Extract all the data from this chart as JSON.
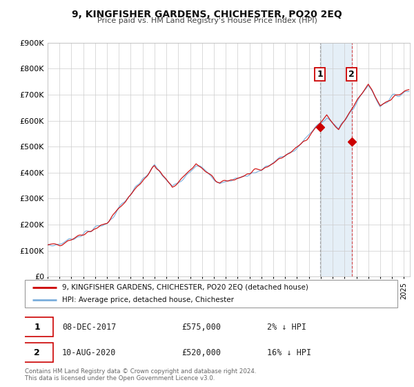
{
  "title": "9, KINGFISHER GARDENS, CHICHESTER, PO20 2EQ",
  "subtitle": "Price paid vs. HM Land Registry's House Price Index (HPI)",
  "ylim": [
    0,
    900000
  ],
  "yticks": [
    0,
    100000,
    200000,
    300000,
    400000,
    500000,
    600000,
    700000,
    800000,
    900000
  ],
  "ytick_labels": [
    "£0",
    "£100K",
    "£200K",
    "£300K",
    "£400K",
    "£500K",
    "£600K",
    "£700K",
    "£800K",
    "£900K"
  ],
  "xmin": 1995.0,
  "xmax": 2025.5,
  "sale1_date": 2017.92,
  "sale1_price": 575000,
  "sale2_date": 2020.61,
  "sale2_price": 520000,
  "color_red": "#cc0000",
  "color_blue": "#7aaedc",
  "color_shading": "#cce0f0",
  "legend_label_red": "9, KINGFISHER GARDENS, CHICHESTER, PO20 2EQ (detached house)",
  "legend_label_blue": "HPI: Average price, detached house, Chichester",
  "sale1_text": "08-DEC-2017",
  "sale1_amount": "£575,000",
  "sale1_pct": "2% ↓ HPI",
  "sale2_text": "10-AUG-2020",
  "sale2_amount": "£520,000",
  "sale2_pct": "16% ↓ HPI",
  "footer1": "Contains HM Land Registry data © Crown copyright and database right 2024.",
  "footer2": "This data is licensed under the Open Government Licence v3.0."
}
